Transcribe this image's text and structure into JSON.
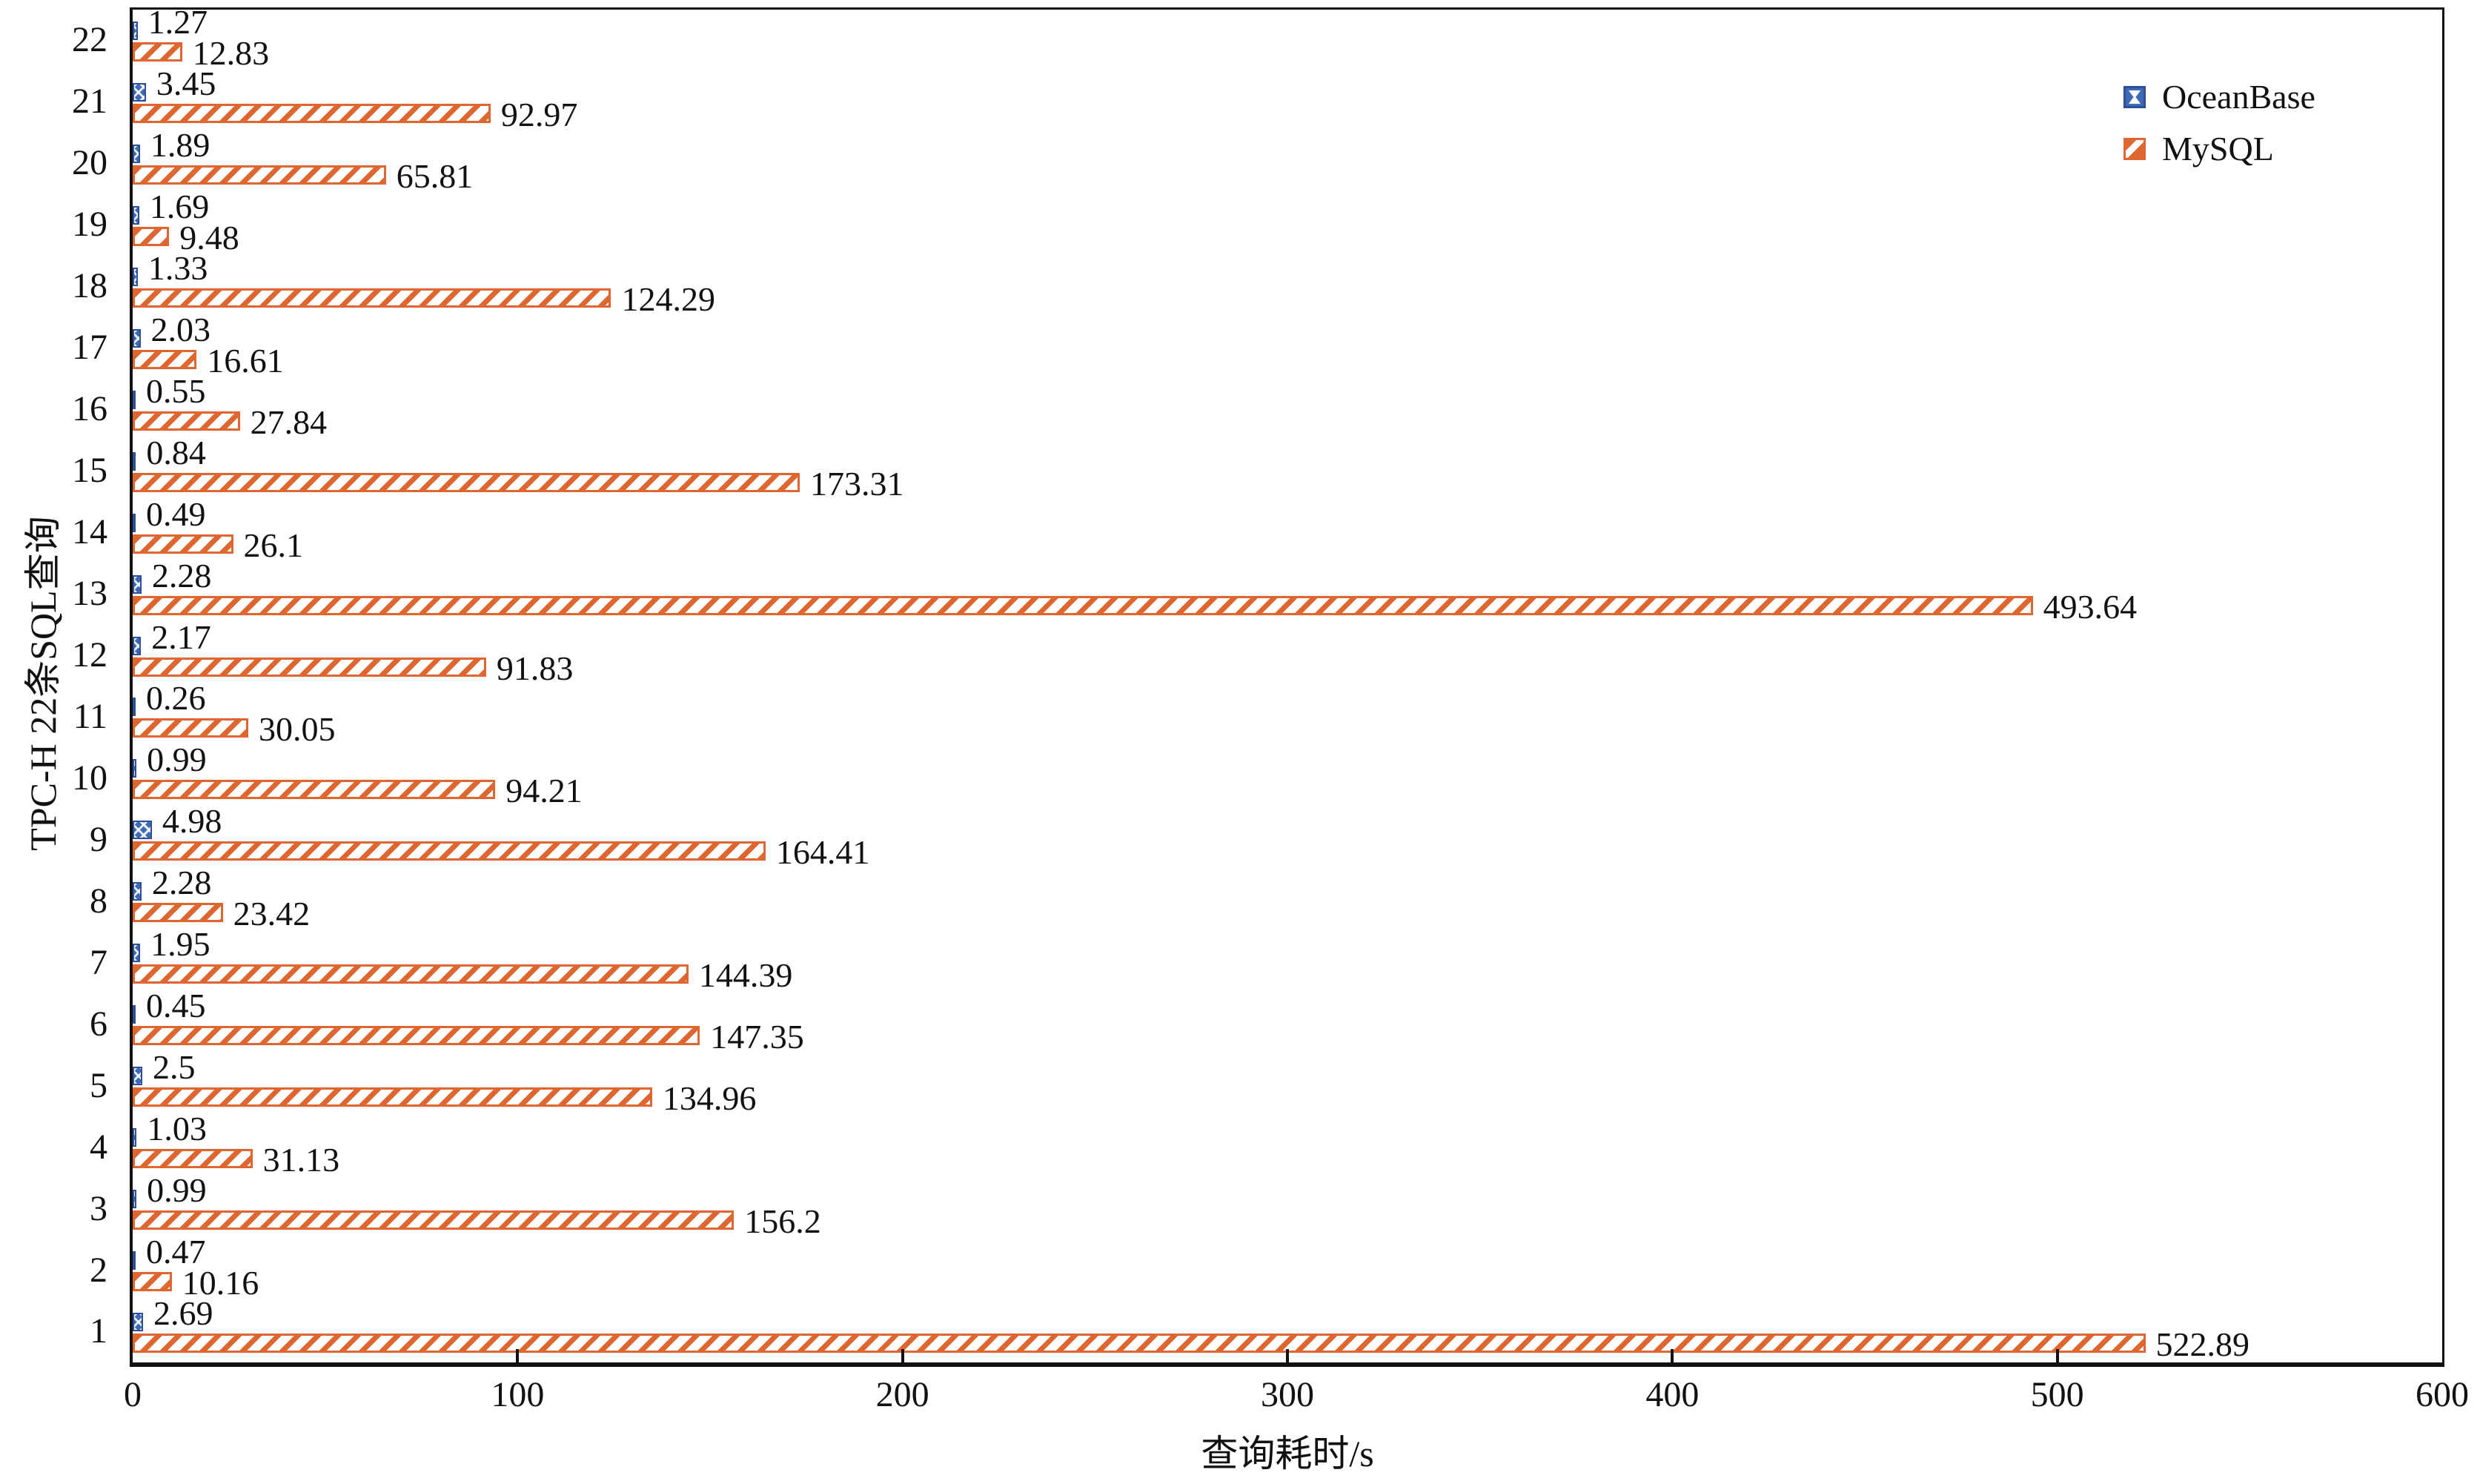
{
  "chart_data": {
    "type": "bar",
    "orientation": "horizontal",
    "title": "",
    "xlabel": "查询耗时/s",
    "ylabel": "TPC-H 22条SQL查询",
    "categories": [
      1,
      2,
      3,
      4,
      5,
      6,
      7,
      8,
      9,
      10,
      11,
      12,
      13,
      14,
      15,
      16,
      17,
      18,
      19,
      20,
      21,
      22
    ],
    "series": [
      {
        "name": "OceanBase",
        "values": [
          2.69,
          0.47,
          0.99,
          1.03,
          2.5,
          0.45,
          1.95,
          2.28,
          4.98,
          0.99,
          0.26,
          2.17,
          2.28,
          0.49,
          0.84,
          0.55,
          2.03,
          1.33,
          1.69,
          1.89,
          3.45,
          1.27
        ]
      },
      {
        "name": "MySQL",
        "values": [
          522.89,
          10.16,
          156.2,
          31.13,
          134.96,
          147.35,
          144.39,
          23.42,
          164.41,
          94.21,
          30.05,
          91.83,
          493.64,
          26.1,
          173.31,
          27.84,
          16.61,
          124.29,
          9.48,
          65.81,
          92.97,
          12.83
        ]
      }
    ],
    "xlim": [
      0,
      600
    ],
    "x_ticks": [
      0,
      100,
      200,
      300,
      400,
      500,
      600
    ],
    "value_labels": true,
    "grid": false,
    "legend_position": "top-right-inside",
    "colors": {
      "oceanbase_fill": "#3f6ab5",
      "oceanbase_border": "#2d4f96",
      "mysql_stripe": "#e0662f",
      "axis": "#111111",
      "text": "#111111",
      "background": "#ffffff"
    }
  }
}
